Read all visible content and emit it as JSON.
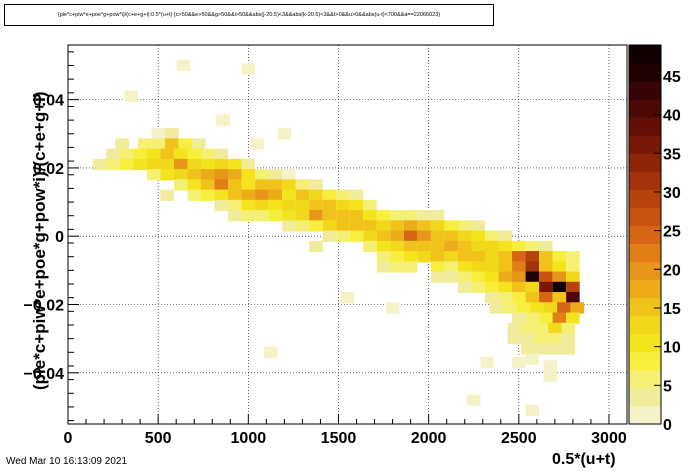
{
  "title": "{pie*c+piw*e+poe*g+pow*i)/(c+e+g+i):0.5*(u+t) {c>50&&e>50&&g>50&&i>50&&abs(j-20.5)<3&&abs(k-20.5)<3&&t>0&&u>0&&abs(u-t)<700&&a==22066023}",
  "footer_date": "Wed Mar 10 16:13:09 2021",
  "chart_data": {
    "type": "heatmap",
    "title": "{pie*c+piw*e+poe*g+pow*i)/(c+e+g+i):0.5*(u+t) {c>50&&e>50&&g>50&&i>50&&abs(j-20.5)<3&&abs(k-20.5)<3&&t>0&&u>0&&abs(u-t)<700&&a==22066023}",
    "xlabel": "0.5*(u+t)",
    "ylabel": "(pie*c+piw*e+poe*g+pow*i)/(c+e+g+i)",
    "xlim": [
      0,
      3100
    ],
    "ylim": [
      -0.055,
      0.056
    ],
    "x_ticks": [
      "0",
      "500",
      "1000",
      "1500",
      "2000",
      "2500",
      "3000"
    ],
    "y_ticks": [
      "−0.04",
      "−0.02",
      "0",
      "0.02",
      "0.04"
    ],
    "grid": true,
    "z_range": [
      0,
      49
    ],
    "colorbar_ticks": [
      "0",
      "5",
      "10",
      "15",
      "20",
      "25",
      "30",
      "35",
      "40",
      "45"
    ],
    "colorbar_colors": [
      "#f5f2c8",
      "#f0ec9c",
      "#f5f074",
      "#f8ee3c",
      "#f4e41c",
      "#f2d81a",
      "#f0c21a",
      "#ecac1a",
      "#e8961a",
      "#e27e18",
      "#d66614",
      "#c85410",
      "#b8420c",
      "#a4320a",
      "#8e2408",
      "#781806",
      "#621006",
      "#4c0806",
      "#360404",
      "#200202",
      "#100000"
    ],
    "bin_width_x": 50,
    "bin_height_y": 0.0033,
    "points_approx": [
      [
        640,
        0.05,
        2
      ],
      [
        1000,
        0.049,
        1
      ],
      [
        350,
        0.041,
        2
      ],
      [
        860,
        0.034,
        2
      ],
      [
        500,
        0.03,
        2
      ],
      [
        575,
        0.03,
        3
      ],
      [
        1200,
        0.03,
        1
      ],
      [
        300,
        0.027,
        3
      ],
      [
        425,
        0.027,
        5
      ],
      [
        500,
        0.027,
        6
      ],
      [
        575,
        0.027,
        14
      ],
      [
        650,
        0.027,
        7
      ],
      [
        725,
        0.027,
        3
      ],
      [
        1050,
        0.027,
        2
      ],
      [
        250,
        0.024,
        4
      ],
      [
        325,
        0.024,
        6
      ],
      [
        400,
        0.024,
        9
      ],
      [
        475,
        0.024,
        11
      ],
      [
        550,
        0.024,
        16
      ],
      [
        625,
        0.024,
        10
      ],
      [
        700,
        0.024,
        8
      ],
      [
        775,
        0.024,
        5
      ],
      [
        850,
        0.024,
        3
      ],
      [
        175,
        0.021,
        3
      ],
      [
        250,
        0.021,
        5
      ],
      [
        325,
        0.021,
        7
      ],
      [
        400,
        0.021,
        10
      ],
      [
        475,
        0.021,
        12
      ],
      [
        550,
        0.021,
        13
      ],
      [
        625,
        0.021,
        20
      ],
      [
        700,
        0.021,
        12
      ],
      [
        775,
        0.021,
        11
      ],
      [
        850,
        0.021,
        12
      ],
      [
        925,
        0.021,
        10
      ],
      [
        1000,
        0.021,
        4
      ],
      [
        475,
        0.018,
        6
      ],
      [
        550,
        0.018,
        10
      ],
      [
        625,
        0.018,
        12
      ],
      [
        700,
        0.018,
        14
      ],
      [
        775,
        0.018,
        18
      ],
      [
        850,
        0.018,
        20
      ],
      [
        925,
        0.018,
        17
      ],
      [
        1000,
        0.018,
        10
      ],
      [
        1075,
        0.018,
        6
      ],
      [
        1150,
        0.018,
        3
      ],
      [
        1225,
        0.018,
        2
      ],
      [
        625,
        0.015,
        6
      ],
      [
        700,
        0.015,
        10
      ],
      [
        775,
        0.015,
        16
      ],
      [
        850,
        0.015,
        22
      ],
      [
        925,
        0.015,
        14
      ],
      [
        1000,
        0.015,
        10
      ],
      [
        1075,
        0.015,
        16
      ],
      [
        1150,
        0.015,
        14
      ],
      [
        1225,
        0.015,
        12
      ],
      [
        1300,
        0.015,
        6
      ],
      [
        1375,
        0.015,
        4
      ],
      [
        550,
        0.012,
        3
      ],
      [
        700,
        0.012,
        5
      ],
      [
        775,
        0.012,
        8
      ],
      [
        850,
        0.012,
        10
      ],
      [
        925,
        0.012,
        15
      ],
      [
        1000,
        0.012,
        18
      ],
      [
        1075,
        0.012,
        20
      ],
      [
        1150,
        0.012,
        18
      ],
      [
        1225,
        0.012,
        10
      ],
      [
        1300,
        0.012,
        14
      ],
      [
        1375,
        0.012,
        12
      ],
      [
        1450,
        0.012,
        8
      ],
      [
        1525,
        0.012,
        5
      ],
      [
        1600,
        0.012,
        3
      ],
      [
        850,
        0.009,
        4
      ],
      [
        925,
        0.009,
        6
      ],
      [
        1000,
        0.009,
        10
      ],
      [
        1075,
        0.009,
        12
      ],
      [
        1150,
        0.009,
        10
      ],
      [
        1225,
        0.009,
        13
      ],
      [
        1300,
        0.009,
        12
      ],
      [
        1375,
        0.009,
        16
      ],
      [
        1450,
        0.009,
        14
      ],
      [
        1525,
        0.009,
        12
      ],
      [
        1600,
        0.009,
        10
      ],
      [
        1675,
        0.009,
        6
      ],
      [
        925,
        0.006,
        3
      ],
      [
        1000,
        0.006,
        5
      ],
      [
        1075,
        0.006,
        6
      ],
      [
        1150,
        0.006,
        9
      ],
      [
        1225,
        0.006,
        10
      ],
      [
        1300,
        0.006,
        12
      ],
      [
        1375,
        0.006,
        20
      ],
      [
        1450,
        0.006,
        14
      ],
      [
        1525,
        0.006,
        16
      ],
      [
        1600,
        0.006,
        14
      ],
      [
        1675,
        0.006,
        10
      ],
      [
        1750,
        0.006,
        8
      ],
      [
        1825,
        0.006,
        6
      ],
      [
        1900,
        0.006,
        5
      ],
      [
        1975,
        0.006,
        4
      ],
      [
        2050,
        0.006,
        3
      ],
      [
        1225,
        0.003,
        4
      ],
      [
        1300,
        0.003,
        6
      ],
      [
        1375,
        0.003,
        8
      ],
      [
        1450,
        0.003,
        12
      ],
      [
        1525,
        0.003,
        14
      ],
      [
        1600,
        0.003,
        14
      ],
      [
        1675,
        0.003,
        14
      ],
      [
        1750,
        0.003,
        12
      ],
      [
        1825,
        0.003,
        15
      ],
      [
        1900,
        0.003,
        18
      ],
      [
        1975,
        0.003,
        14
      ],
      [
        2050,
        0.003,
        12
      ],
      [
        2125,
        0.003,
        8
      ],
      [
        2200,
        0.003,
        6
      ],
      [
        2275,
        0.003,
        4
      ],
      [
        1450,
        0.0,
        4
      ],
      [
        1525,
        0.0,
        6
      ],
      [
        1600,
        0.0,
        8
      ],
      [
        1675,
        0.0,
        12
      ],
      [
        1750,
        0.0,
        14
      ],
      [
        1825,
        0.0,
        18
      ],
      [
        1900,
        0.0,
        25
      ],
      [
        1975,
        0.0,
        20
      ],
      [
        2050,
        0.0,
        16
      ],
      [
        2125,
        0.0,
        14
      ],
      [
        2200,
        0.0,
        12
      ],
      [
        2275,
        0.0,
        10
      ],
      [
        2350,
        0.0,
        6
      ],
      [
        2425,
        0.0,
        4
      ],
      [
        1375,
        -0.003,
        3
      ],
      [
        1675,
        -0.003,
        6
      ],
      [
        1750,
        -0.003,
        10
      ],
      [
        1825,
        -0.003,
        12
      ],
      [
        1900,
        -0.003,
        16
      ],
      [
        1975,
        -0.003,
        15
      ],
      [
        2050,
        -0.003,
        16
      ],
      [
        2125,
        -0.003,
        18
      ],
      [
        2200,
        -0.003,
        14
      ],
      [
        2275,
        -0.003,
        13
      ],
      [
        2350,
        -0.003,
        12
      ],
      [
        2425,
        -0.003,
        10
      ],
      [
        2500,
        -0.003,
        8
      ],
      [
        2575,
        -0.003,
        6
      ],
      [
        2650,
        -0.003,
        4
      ],
      [
        1750,
        -0.006,
        5
      ],
      [
        1825,
        -0.006,
        8
      ],
      [
        1900,
        -0.006,
        10
      ],
      [
        1975,
        -0.006,
        12
      ],
      [
        2050,
        -0.006,
        14
      ],
      [
        2125,
        -0.006,
        12
      ],
      [
        2200,
        -0.006,
        16
      ],
      [
        2275,
        -0.006,
        14
      ],
      [
        2350,
        -0.006,
        12
      ],
      [
        2425,
        -0.006,
        15
      ],
      [
        2500,
        -0.006,
        24
      ],
      [
        2575,
        -0.006,
        28
      ],
      [
        2650,
        -0.006,
        14
      ],
      [
        2725,
        -0.006,
        8
      ],
      [
        2800,
        -0.006,
        5
      ],
      [
        1750,
        -0.009,
        3
      ],
      [
        1825,
        -0.009,
        5
      ],
      [
        1900,
        -0.009,
        6
      ],
      [
        2050,
        -0.009,
        8
      ],
      [
        2125,
        -0.009,
        6
      ],
      [
        2200,
        -0.009,
        10
      ],
      [
        2275,
        -0.009,
        12
      ],
      [
        2350,
        -0.009,
        12
      ],
      [
        2425,
        -0.009,
        16
      ],
      [
        2500,
        -0.009,
        22
      ],
      [
        2575,
        -0.009,
        32
      ],
      [
        2650,
        -0.009,
        16
      ],
      [
        2725,
        -0.009,
        10
      ],
      [
        2800,
        -0.009,
        6
      ],
      [
        2050,
        -0.012,
        3
      ],
      [
        2125,
        -0.012,
        4
      ],
      [
        2200,
        -0.012,
        6
      ],
      [
        2275,
        -0.012,
        8
      ],
      [
        2350,
        -0.012,
        10
      ],
      [
        2425,
        -0.012,
        18
      ],
      [
        2500,
        -0.012,
        20
      ],
      [
        2575,
        -0.012,
        45
      ],
      [
        2650,
        -0.012,
        26
      ],
      [
        2725,
        -0.012,
        20
      ],
      [
        2800,
        -0.012,
        12
      ],
      [
        2200,
        -0.015,
        3
      ],
      [
        2275,
        -0.015,
        5
      ],
      [
        2350,
        -0.015,
        8
      ],
      [
        2425,
        -0.015,
        10
      ],
      [
        2500,
        -0.015,
        16
      ],
      [
        2575,
        -0.015,
        12
      ],
      [
        2650,
        -0.015,
        36
      ],
      [
        2725,
        -0.015,
        49
      ],
      [
        2800,
        -0.015,
        28
      ],
      [
        1550,
        -0.018,
        2
      ],
      [
        2350,
        -0.018,
        4
      ],
      [
        2425,
        -0.018,
        6
      ],
      [
        2500,
        -0.018,
        8
      ],
      [
        2575,
        -0.018,
        15
      ],
      [
        2650,
        -0.018,
        24
      ],
      [
        2725,
        -0.018,
        14
      ],
      [
        2800,
        -0.018,
        40
      ],
      [
        1800,
        -0.021,
        2
      ],
      [
        2375,
        -0.021,
        3
      ],
      [
        2450,
        -0.021,
        5
      ],
      [
        2525,
        -0.021,
        8
      ],
      [
        2600,
        -0.021,
        10
      ],
      [
        2675,
        -0.021,
        12
      ],
      [
        2750,
        -0.021,
        24
      ],
      [
        2825,
        -0.021,
        18
      ],
      [
        2500,
        -0.024,
        4
      ],
      [
        2575,
        -0.024,
        6
      ],
      [
        2650,
        -0.024,
        8
      ],
      [
        2725,
        -0.024,
        22
      ],
      [
        2800,
        -0.024,
        10
      ],
      [
        2475,
        -0.027,
        3
      ],
      [
        2550,
        -0.027,
        5
      ],
      [
        2625,
        -0.027,
        6
      ],
      [
        2700,
        -0.027,
        12
      ],
      [
        2775,
        -0.027,
        5
      ],
      [
        2475,
        -0.03,
        3
      ],
      [
        2550,
        -0.03,
        4
      ],
      [
        2625,
        -0.03,
        5
      ],
      [
        2700,
        -0.03,
        5
      ],
      [
        2775,
        -0.03,
        4
      ],
      [
        2550,
        -0.033,
        3
      ],
      [
        2625,
        -0.033,
        4
      ],
      [
        2700,
        -0.033,
        4
      ],
      [
        2775,
        -0.033,
        3
      ],
      [
        1125,
        -0.034,
        2
      ],
      [
        2575,
        -0.036,
        2
      ],
      [
        2325,
        -0.037,
        2
      ],
      [
        2500,
        -0.037,
        2
      ],
      [
        2675,
        -0.038,
        2
      ],
      [
        2675,
        -0.041,
        2
      ],
      [
        2250,
        -0.048,
        2
      ],
      [
        2575,
        -0.051,
        2
      ]
    ]
  }
}
